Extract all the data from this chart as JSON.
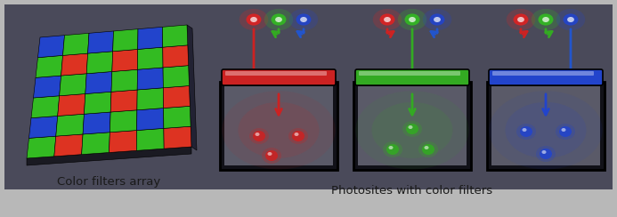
{
  "fig_bg_color": "#b8b8b8",
  "dark_bg": "#4a4a5a",
  "label_left": "Color filters array",
  "label_right": "Photosites with color filters",
  "label_color": "#1a1a1a",
  "label_fontsize": 9.5,
  "bayer_grid": [
    [
      "green",
      "red",
      "green",
      "red",
      "green",
      "red"
    ],
    [
      "blue",
      "green",
      "blue",
      "green",
      "blue",
      "green"
    ],
    [
      "green",
      "red",
      "green",
      "red",
      "green",
      "red"
    ],
    [
      "blue",
      "green",
      "blue",
      "green",
      "blue",
      "green"
    ],
    [
      "green",
      "red",
      "green",
      "red",
      "green",
      "red"
    ],
    [
      "blue",
      "green",
      "blue",
      "green",
      "blue",
      "green"
    ]
  ],
  "color_map": {
    "red": "#dd3322",
    "green": "#33bb22",
    "blue": "#2244cc"
  },
  "filter_colors": [
    "#cc2222",
    "#33aa22",
    "#2244cc"
  ],
  "box_bg": "#4a4a52",
  "box_border": "#111111",
  "arrow_colors": [
    "#cc2222",
    "#33aa22",
    "#2244cc"
  ]
}
